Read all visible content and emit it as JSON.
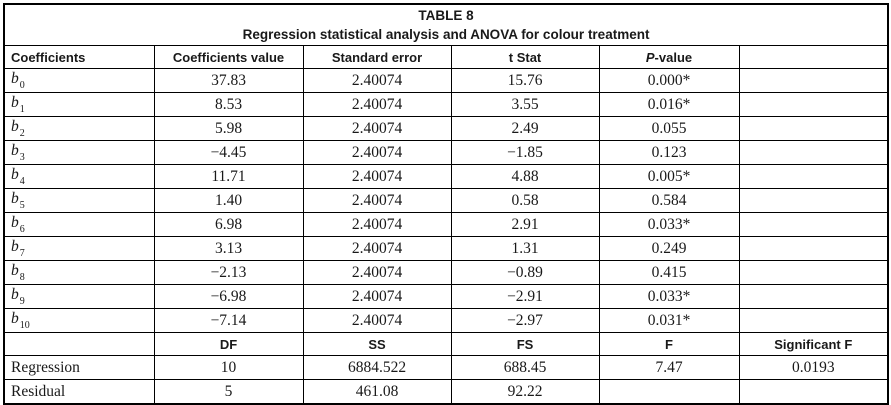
{
  "table": {
    "title": "TABLE 8",
    "subtitle": "Regression statistical analysis and ANOVA for colour treatment",
    "columns": {
      "c0": "Coefficients",
      "c1": "Coefficients value",
      "c2": "Standard error",
      "c3": "t Stat",
      "c4_italic": "P",
      "c4_rest": "-value",
      "c5": ""
    },
    "coefficient_rows": [
      {
        "label": {
          "base": "b",
          "sub": "0"
        },
        "cells": [
          "37.83",
          "2.40074",
          "15.76",
          "0.000*",
          ""
        ]
      },
      {
        "label": {
          "base": "b",
          "sub": "1"
        },
        "cells": [
          "8.53",
          "2.40074",
          "3.55",
          "0.016*",
          ""
        ]
      },
      {
        "label": {
          "base": "b",
          "sub": "2"
        },
        "cells": [
          "5.98",
          "2.40074",
          "2.49",
          "0.055",
          ""
        ]
      },
      {
        "label": {
          "base": "b",
          "sub": "3"
        },
        "cells": [
          "−4.45",
          "2.40074",
          "−1.85",
          "0.123",
          ""
        ]
      },
      {
        "label": {
          "base": "b",
          "sub": "4"
        },
        "cells": [
          "11.71",
          "2.40074",
          "4.88",
          "0.005*",
          ""
        ]
      },
      {
        "label": {
          "base": "b",
          "sub": "5"
        },
        "cells": [
          "1.40",
          "2.40074",
          "0.58",
          "0.584",
          ""
        ]
      },
      {
        "label": {
          "base": "b",
          "sub": "6"
        },
        "cells": [
          "6.98",
          "2.40074",
          "2.91",
          "0.033*",
          ""
        ]
      },
      {
        "label": {
          "base": "b",
          "sub": "7"
        },
        "cells": [
          "3.13",
          "2.40074",
          "1.31",
          "0.249",
          ""
        ]
      },
      {
        "label": {
          "base": "b",
          "sub": "8"
        },
        "cells": [
          "−2.13",
          "2.40074",
          "−0.89",
          "0.415",
          ""
        ]
      },
      {
        "label": {
          "base": "b",
          "sub": "9"
        },
        "cells": [
          "−6.98",
          "2.40074",
          "−2.91",
          "0.033*",
          ""
        ]
      },
      {
        "label": {
          "base": "b",
          "sub": "10"
        },
        "cells": [
          "−7.14",
          "2.40074",
          "−2.97",
          "0.031*",
          ""
        ]
      }
    ],
    "anova_columns": [
      "",
      "DF",
      "SS",
      "FS",
      "F",
      "Significant F"
    ],
    "anova_rows": [
      {
        "label": "Regression",
        "cells": [
          "10",
          "6884.522",
          "688.45",
          "7.47",
          "0.0193"
        ]
      },
      {
        "label": "Residual",
        "cells": [
          "5",
          "461.08",
          "92.22",
          "",
          ""
        ]
      }
    ]
  }
}
